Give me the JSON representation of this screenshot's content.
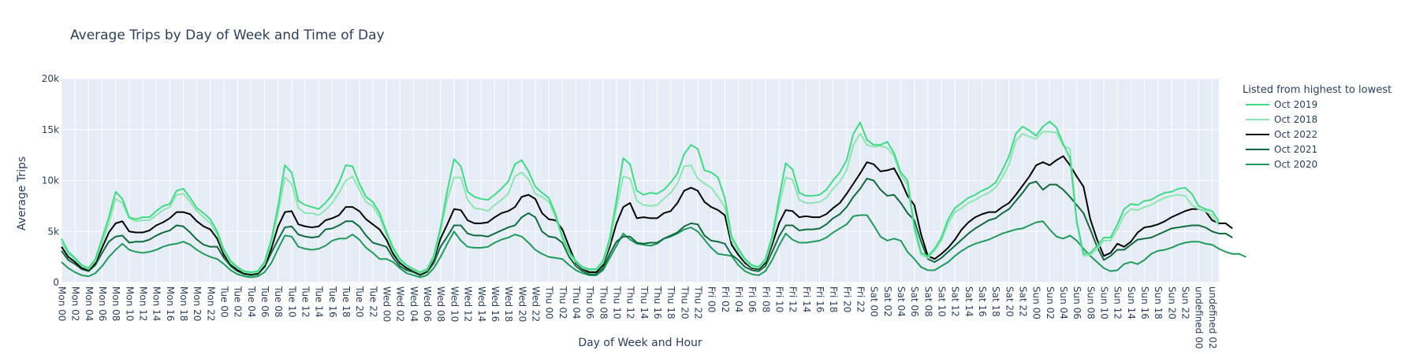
{
  "chart_data": {
    "type": "line",
    "title": "Average Trips by Day of Week and Time of Day",
    "xlabel": "Day of Week and Hour",
    "ylabel": "Average Trips",
    "ylim": [
      0,
      20000
    ],
    "y_ticks": [
      0,
      5000,
      10000,
      15000,
      20000
    ],
    "y_tick_labels": [
      "0",
      "5k",
      "10k",
      "15k",
      "20k"
    ],
    "grid": true,
    "legend_title": "Listed from highest to lowest",
    "legend_position": "top-right",
    "days": [
      "Mon",
      "Tue",
      "Wed",
      "Thu",
      "Fri",
      "Sat",
      "Sun"
    ],
    "x_tick_step_hours": 2,
    "series": [
      {
        "name": "Oct 2019",
        "color": "#3ddc84",
        "width": 2,
        "values": [
          4300,
          3000,
          2400,
          1700,
          1400,
          2300,
          4300,
          6400,
          8900,
          8200,
          6400,
          6200,
          6400,
          6400,
          7000,
          7500,
          7700,
          9000,
          9200,
          8300,
          7300,
          6800,
          6200,
          5000,
          3200,
          2100,
          1500,
          1100,
          1000,
          1100,
          2000,
          4200,
          7500,
          11500,
          10800,
          8000,
          7600,
          7400,
          7200,
          7800,
          8600,
          9800,
          11500,
          11400,
          9700,
          8400,
          7900,
          6800,
          5000,
          3400,
          2300,
          1700,
          1300,
          1000,
          1300,
          2600,
          5400,
          9000,
          12100,
          11400,
          8900,
          8400,
          8200,
          8100,
          8600,
          9200,
          9900,
          11600,
          12000,
          10900,
          9400,
          8800,
          8300,
          6700,
          4500,
          3000,
          2100,
          1500,
          1300,
          1300,
          2100,
          4300,
          8100,
          12200,
          11600,
          9000,
          8600,
          8800,
          8700,
          9100,
          9800,
          10700,
          12600,
          13500,
          13100,
          11000,
          10800,
          10300,
          8300,
          4500,
          3300,
          2300,
          1700,
          1500,
          2300,
          4500,
          8200,
          11700,
          11100,
          8800,
          8500,
          8500,
          8600,
          9100,
          10000,
          10800,
          12000,
          14600,
          15700,
          14000,
          13500,
          13500,
          13800,
          12700,
          10800,
          10000,
          5500,
          2900,
          2600,
          3300,
          4400,
          6200,
          7300,
          7800,
          8300,
          8600,
          9000,
          9300,
          9800,
          11000,
          12400,
          14600,
          15300,
          14900,
          14400,
          15300,
          15800,
          15200,
          13600,
          12200,
          6000,
          2800,
          2900,
          3600,
          4400,
          4400,
          5700,
          7200,
          7700,
          7600,
          8000,
          8100,
          8500,
          8800,
          8900,
          9200,
          9300,
          8700,
          7500,
          7200,
          7000,
          6000
        ]
      },
      {
        "name": "Oct 2018",
        "color": "#8de6b0",
        "width": 2,
        "values": [
          3900,
          2800,
          2200,
          1600,
          1300,
          2100,
          3900,
          5800,
          8200,
          7800,
          6300,
          6000,
          6100,
          6100,
          6600,
          7100,
          7400,
          8600,
          8700,
          7900,
          7000,
          6400,
          5800,
          4700,
          3000,
          1900,
          1400,
          1000,
          900,
          1000,
          1800,
          3800,
          6800,
          10300,
          9700,
          7300,
          6800,
          6800,
          6600,
          7100,
          7800,
          8800,
          10000,
          10400,
          9100,
          7900,
          7500,
          6400,
          4700,
          3100,
          2100,
          1600,
          1200,
          900,
          1200,
          2400,
          5000,
          8200,
          10300,
          10300,
          8100,
          7300,
          7200,
          7000,
          7600,
          8100,
          8700,
          10400,
          10800,
          10100,
          8700,
          8400,
          7900,
          6400,
          4300,
          2800,
          2000,
          1400,
          1200,
          1200,
          1900,
          3900,
          7300,
          10400,
          10200,
          8000,
          7600,
          7500,
          7600,
          8200,
          8800,
          9700,
          11400,
          11500,
          10200,
          9700,
          9300,
          8400,
          7400,
          4100,
          3000,
          2100,
          1500,
          1400,
          2100,
          4100,
          7500,
          10300,
          10100,
          8100,
          7800,
          7800,
          7900,
          8300,
          9200,
          9900,
          11000,
          13500,
          14600,
          13500,
          13300,
          13400,
          13200,
          12400,
          10500,
          9600,
          5200,
          2700,
          2400,
          3100,
          4100,
          5800,
          6900,
          7300,
          7800,
          8100,
          8500,
          8800,
          9300,
          10300,
          11600,
          13900,
          14600,
          14300,
          14100,
          14800,
          14800,
          14700,
          13400,
          13100,
          5800,
          2600,
          2700,
          3300,
          4100,
          4100,
          5200,
          6600,
          7200,
          7100,
          7400,
          7600,
          8000,
          8300,
          8500,
          8600,
          8500,
          7600,
          7200,
          7000,
          6600,
          5600
        ]
      },
      {
        "name": "Oct 2022",
        "color": "#000000",
        "width": 2,
        "values": [
          3500,
          2500,
          2000,
          1400,
          1200,
          1900,
          3400,
          4900,
          5800,
          6000,
          5000,
          4900,
          4900,
          5100,
          5600,
          5900,
          6300,
          6900,
          6900,
          6700,
          6000,
          5500,
          5200,
          4300,
          2700,
          1800,
          1200,
          900,
          800,
          900,
          1600,
          3300,
          5500,
          6900,
          7000,
          5700,
          5500,
          5400,
          5500,
          6100,
          6300,
          6600,
          7400,
          7400,
          7000,
          6200,
          5700,
          5200,
          4200,
          2800,
          1900,
          1400,
          1100,
          800,
          1100,
          2200,
          4300,
          5700,
          7200,
          7100,
          6100,
          5800,
          5800,
          5900,
          6400,
          6800,
          7000,
          7400,
          8400,
          8600,
          8200,
          6800,
          6200,
          6100,
          5200,
          3500,
          1900,
          1300,
          1000,
          1000,
          1700,
          3500,
          5800,
          7400,
          7800,
          6300,
          6400,
          6300,
          6300,
          6800,
          7000,
          7800,
          9000,
          9300,
          9000,
          7900,
          7400,
          7100,
          6600,
          3700,
          2700,
          1900,
          1400,
          1300,
          1900,
          3700,
          5800,
          7100,
          7000,
          6400,
          6500,
          6400,
          6400,
          6700,
          7300,
          7800,
          8700,
          9700,
          10700,
          11800,
          11600,
          10900,
          11000,
          11200,
          10000,
          8500,
          7600,
          4700,
          2600,
          2300,
          2800,
          3400,
          4200,
          5200,
          5900,
          6400,
          6700,
          6900,
          6900,
          7400,
          7800,
          8600,
          9500,
          10400,
          11500,
          11800,
          11500,
          12000,
          12400,
          11500,
          10400,
          9400,
          6200,
          4200,
          2600,
          2900,
          3800,
          3500,
          4000,
          4900,
          5400,
          5500,
          5700,
          6000,
          6400,
          6700,
          7000,
          7200,
          7200,
          7000,
          6100,
          5800,
          5800,
          5300
        ]
      },
      {
        "name": "Oct 2021",
        "color": "#0f6b3c",
        "width": 2,
        "values": [
          3100,
          2200,
          1800,
          1300,
          1100,
          1700,
          2900,
          4000,
          4500,
          4600,
          3900,
          4000,
          4000,
          4200,
          4600,
          4900,
          5100,
          5600,
          5500,
          4900,
          4200,
          3700,
          3500,
          3500,
          2400,
          1600,
          1100,
          800,
          700,
          800,
          1500,
          2900,
          4200,
          5400,
          5500,
          4700,
          4500,
          4400,
          4500,
          5200,
          5300,
          5600,
          6000,
          6000,
          5500,
          4600,
          3900,
          3700,
          3500,
          2400,
          1600,
          1200,
          1000,
          700,
          1000,
          1900,
          3500,
          4500,
          5600,
          5600,
          4800,
          4600,
          4600,
          4500,
          4800,
          5100,
          5400,
          5600,
          6400,
          6800,
          6400,
          5000,
          4500,
          4400,
          3900,
          2500,
          1600,
          1100,
          800,
          800,
          1400,
          2800,
          4000,
          4500,
          4500,
          3900,
          3800,
          3900,
          3900,
          4300,
          4600,
          4900,
          5500,
          5800,
          5700,
          4600,
          4100,
          4000,
          3800,
          2700,
          2200,
          1500,
          1200,
          1100,
          1600,
          3000,
          4500,
          5600,
          5600,
          5100,
          5200,
          5200,
          5300,
          5700,
          6300,
          6700,
          7400,
          8400,
          9200,
          10200,
          10000,
          9100,
          8500,
          8600,
          7800,
          6800,
          6100,
          4000,
          2300,
          2000,
          2400,
          3000,
          3600,
          4200,
          4800,
          5300,
          5700,
          6100,
          6300,
          6800,
          7200,
          8000,
          8800,
          9700,
          9900,
          9100,
          9600,
          9600,
          9100,
          8400,
          7600,
          6800,
          5200,
          3500,
          2200,
          2600,
          3200,
          3200,
          3700,
          4200,
          4300,
          4400,
          4700,
          5000,
          5300,
          5400,
          5500,
          5600,
          5600,
          5400,
          5000,
          4800,
          4800,
          4400
        ]
      },
      {
        "name": "Oct 2020",
        "color": "#1e9b5a",
        "width": 2,
        "values": [
          2000,
          1400,
          1000,
          700,
          600,
          900,
          1600,
          2500,
          3200,
          3800,
          3200,
          3000,
          2900,
          3000,
          3200,
          3500,
          3700,
          3800,
          4000,
          3700,
          3200,
          2800,
          2500,
          2300,
          1800,
          1200,
          800,
          600,
          500,
          600,
          1000,
          1900,
          3300,
          4600,
          4500,
          3500,
          3300,
          3200,
          3300,
          3600,
          4100,
          4300,
          4300,
          4700,
          4200,
          3400,
          2900,
          2300,
          2300,
          2000,
          1400,
          900,
          700,
          500,
          700,
          1400,
          2500,
          3800,
          5000,
          4100,
          3500,
          3400,
          3400,
          3500,
          3900,
          4200,
          4400,
          4700,
          4500,
          3900,
          3200,
          2800,
          2500,
          2400,
          2300,
          1700,
          1200,
          900,
          700,
          700,
          1200,
          2400,
          3600,
          4800,
          4200,
          3800,
          3700,
          3600,
          3800,
          4300,
          4500,
          4800,
          5200,
          5400,
          5000,
          4200,
          3400,
          2800,
          2700,
          2600,
          1700,
          1100,
          800,
          700,
          1100,
          2200,
          3600,
          4800,
          4200,
          3900,
          3900,
          4000,
          4100,
          4400,
          4900,
          5300,
          5700,
          6500,
          6600,
          6600,
          5600,
          4500,
          4100,
          4300,
          4100,
          3000,
          2300,
          1500,
          1200,
          1200,
          1600,
          2000,
          2600,
          3100,
          3500,
          3800,
          4000,
          4200,
          4500,
          4800,
          5000,
          5200,
          5300,
          5600,
          5900,
          6000,
          5200,
          4500,
          4300,
          4600,
          4100,
          3300,
          2600,
          2000,
          1400,
          1100,
          1200,
          1800,
          2000,
          1800,
          2200,
          2800,
          3100,
          3200,
          3400,
          3700,
          3900,
          4000,
          4000,
          3800,
          3700,
          3300,
          3000,
          2800,
          2800,
          2500
        ]
      }
    ]
  }
}
